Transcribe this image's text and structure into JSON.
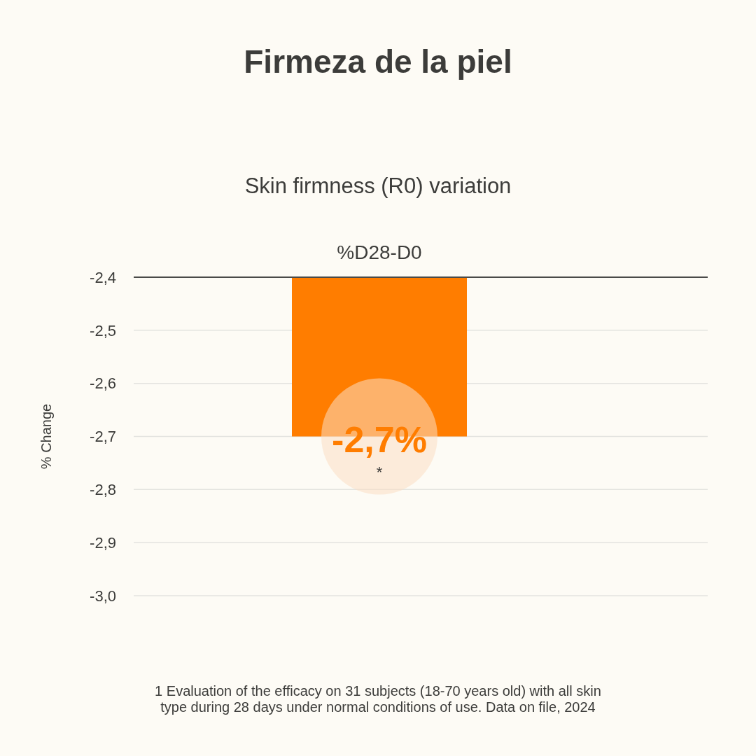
{
  "chart_data": {
    "type": "bar",
    "title": "Firmeza de la piel",
    "subtitle": "Skin firmness (R0) variation",
    "ylabel": "% Change",
    "categories": [
      "%D28-D0"
    ],
    "values": [
      -2.7
    ],
    "color": "#ff7d00",
    "value_labels": [
      "-2,7%"
    ],
    "ylim": [
      -3.0,
      -2.4
    ],
    "yticks": [
      {
        "value": -2.4,
        "label": "-2,4"
      },
      {
        "value": -2.5,
        "label": "-2,5"
      },
      {
        "value": -2.6,
        "label": "-2,6"
      },
      {
        "value": -2.7,
        "label": "-2,7"
      },
      {
        "value": -2.8,
        "label": "-2,8"
      },
      {
        "value": -2.9,
        "label": "-2,9"
      },
      {
        "value": -3.0,
        "label": "-3,0"
      }
    ],
    "grid": "y",
    "annotations": [
      "*",
      "1 Evaluation of the efficacy on 31 subjects (18-70 years old) with all skin type during 28 days under normal conditions of use. Data on file, 2024"
    ]
  }
}
